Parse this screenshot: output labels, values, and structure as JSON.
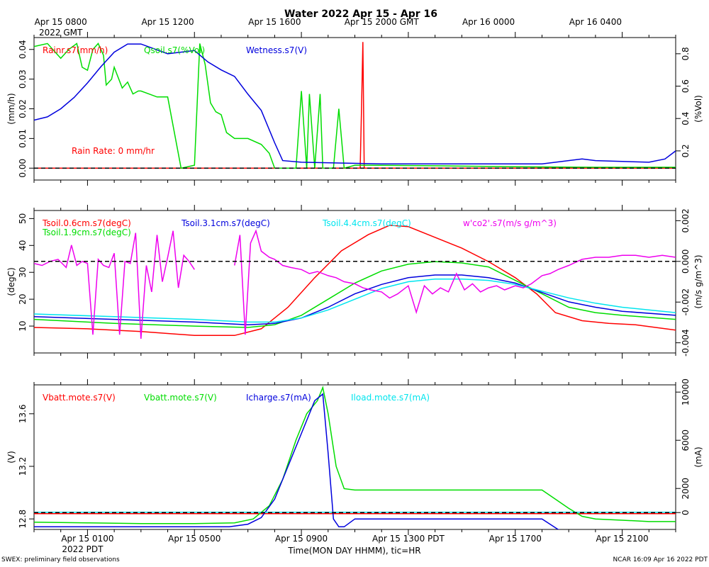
{
  "title": "Water 2022 Apr 15 - Apr 16",
  "gmt_ticks": [
    {
      "x": 0,
      "label": "Apr 15 0800",
      "label2": "2022 GMT"
    },
    {
      "x": 4,
      "label": "Apr 15 1200"
    },
    {
      "x": 8,
      "label": "Apr 15 1600"
    },
    {
      "x": 12,
      "label": "Apr 15 2000 GMT"
    },
    {
      "x": 16,
      "label": "Apr 16 0000"
    },
    {
      "x": 20,
      "label": "Apr 16 0400"
    }
  ],
  "pdt_ticks": [
    {
      "x": 1,
      "label": "Apr 15 0100",
      "label2": "2022 PDT"
    },
    {
      "x": 5,
      "label": "Apr 15 0500"
    },
    {
      "x": 9,
      "label": "Apr 15 0900"
    },
    {
      "x": 13,
      "label": "Apr 15 1300 PDT"
    },
    {
      "x": 17,
      "label": "Apr 15 1700"
    },
    {
      "x": 21,
      "label": "Apr 15 2100"
    }
  ],
  "x_axis_label": "Time(MON DAY HHMM), tic=HR",
  "footer_left": "SWEX: preliminary field observations",
  "footer_right": "NCAR 16:09 Apr 16 2022 PDT",
  "colors": {
    "red": "#ff0000",
    "green": "#00dd00",
    "blue": "#0000dd",
    "cyan": "#00e5ee",
    "magenta": "#ee00ee",
    "black": "#000000"
  },
  "chart_data": [
    {
      "type": "line",
      "title": "Water panel",
      "xlim": [
        -1,
        23
      ],
      "ylabel_left": "(mm/h)",
      "ylim_left": [
        -0.004,
        0.044
      ],
      "yticks_left": [
        0.0,
        0.01,
        0.02,
        0.03,
        0.04
      ],
      "ytick_labels_left": [
        "0.00",
        "0.01",
        "0.02",
        "0.03",
        "0.04"
      ],
      "ylabel_right": "(%Vol)",
      "ylim_right": [
        0.02,
        0.9
      ],
      "yticks_right": [
        0.2,
        0.4,
        0.6,
        0.8
      ],
      "ytick_labels_right": [
        "0.2",
        "0.4",
        "0.6",
        "0.8"
      ],
      "zero_line": 0.0,
      "annotation": "Rain Rate: 0 mm/hr",
      "series": [
        {
          "name": "Rainr.s7(mm/h)",
          "color": "red",
          "axis": "left",
          "x": [
            -1,
            11.2,
            11.25,
            11.3,
            11.35,
            23
          ],
          "y": [
            0,
            0,
            0.02,
            0.0425,
            0,
            0
          ]
        },
        {
          "name": "Qsoil.s7(%Vol)",
          "color": "green",
          "axis": "left",
          "x": [
            -1,
            -0.5,
            0,
            0.3,
            0.6,
            0.8,
            1,
            1.2,
            1.4,
            1.6,
            1.7,
            1.9,
            2,
            2.3,
            2.5,
            2.7,
            2.9,
            3,
            3.3,
            3.6,
            4,
            4.5,
            5,
            5.2,
            5.4,
            5.6,
            5.8,
            6,
            6.2,
            6.5,
            7,
            7.5,
            7.8,
            8,
            8.2,
            8.5,
            8.8,
            9,
            9.2,
            9.3,
            9.5,
            9.7,
            9.8,
            10,
            10.2,
            10.4,
            10.6,
            11,
            11.5,
            14,
            17,
            20,
            23
          ],
          "y": [
            0.041,
            0.042,
            0.037,
            0.04,
            0.042,
            0.034,
            0.033,
            0.04,
            0.042,
            0.038,
            0.028,
            0.03,
            0.034,
            0.027,
            0.029,
            0.025,
            0.026,
            0.026,
            0.025,
            0.024,
            0.024,
            0.0,
            0.001,
            0.042,
            0.035,
            0.022,
            0.019,
            0.018,
            0.012,
            0.01,
            0.01,
            0.008,
            0.005,
            0.0,
            0.0,
            0.0,
            0.0,
            0.026,
            0.0,
            0.025,
            0.0,
            0.025,
            0.0,
            0.0,
            0.0,
            0.02,
            0.0,
            0.001,
            0.001,
            0.0008,
            0.0005,
            0.0003,
            0.0003
          ]
        },
        {
          "name": "Wetness.s7(V)",
          "color": "blue",
          "axis": "right",
          "x": [
            -1,
            -0.5,
            0,
            0.5,
            1,
            1.5,
            2,
            2.5,
            3,
            4,
            5,
            5.5,
            6,
            6.5,
            7,
            7.5,
            8,
            8.3,
            9,
            12,
            15,
            18,
            19.5,
            20,
            22,
            22.6,
            23
          ],
          "y": [
            0.39,
            0.41,
            0.46,
            0.53,
            0.62,
            0.72,
            0.81,
            0.86,
            0.86,
            0.8,
            0.82,
            0.75,
            0.7,
            0.66,
            0.55,
            0.45,
            0.25,
            0.14,
            0.13,
            0.12,
            0.12,
            0.12,
            0.15,
            0.14,
            0.13,
            0.15,
            0.2
          ]
        }
      ]
    },
    {
      "type": "line",
      "title": "Soil temperature panel",
      "xlim": [
        -1,
        23
      ],
      "ylabel_left": "(degC)",
      "ylim_left": [
        0,
        53
      ],
      "yticks_left": [
        10,
        20,
        30,
        40,
        50
      ],
      "ytick_labels_left": [
        "10",
        "20",
        "30",
        "40",
        "50"
      ],
      "ylabel_right": "(m/s g/m^3)",
      "ylim_right": [
        -0.0045,
        0.0025
      ],
      "yticks_right": [
        -0.004,
        -0.002,
        0.0,
        0.002
      ],
      "ytick_labels_right": [
        "-0.004",
        "-0.002",
        "0.000",
        "0.002"
      ],
      "zero_line": 0.0,
      "series": [
        {
          "name": "Tsoil.0.6cm.s7(degC)",
          "color": "red",
          "axis": "left",
          "x": [
            -1,
            1,
            3,
            5,
            6.5,
            7.5,
            8.5,
            9.5,
            10.5,
            11.5,
            12.3,
            13,
            14,
            15,
            16,
            17,
            17.8,
            18.5,
            19.5,
            20.5,
            21.5,
            23
          ],
          "y": [
            9.5,
            9,
            8,
            6.5,
            6.5,
            9,
            17,
            28,
            38,
            44,
            47.5,
            47,
            43,
            39,
            34,
            28,
            22,
            15,
            12,
            11,
            10.5,
            8.5
          ]
        },
        {
          "name": "Tsoil.1.9cm.s7(degC)",
          "color": "green",
          "axis": "left",
          "x": [
            -1,
            2,
            5,
            7,
            8,
            9,
            10,
            11,
            12,
            13,
            14,
            15,
            16,
            17,
            18,
            19,
            20,
            21,
            23
          ],
          "y": [
            12.5,
            11,
            10,
            9.5,
            10.5,
            14,
            20,
            26,
            30.5,
            33,
            34,
            33.5,
            32,
            27,
            22,
            17,
            15,
            14,
            12.5
          ]
        },
        {
          "name": "Tsoil.3.1cm.s7(degC)",
          "color": "blue",
          "axis": "left",
          "x": [
            -1,
            2,
            5,
            7,
            8,
            9,
            10,
            11,
            12,
            13,
            14,
            15,
            16,
            17,
            18,
            19,
            20,
            21,
            23
          ],
          "y": [
            13.5,
            12.5,
            11.5,
            10.5,
            11,
            13,
            17,
            22,
            25.5,
            28,
            29,
            29,
            28,
            26,
            22.5,
            19,
            17,
            15.5,
            14
          ]
        },
        {
          "name": "Tsoil.4.4cm.s7(degC)",
          "color": "cyan",
          "axis": "left",
          "x": [
            -1,
            2,
            5,
            7,
            8,
            9,
            10,
            11,
            12,
            13,
            14,
            15,
            16,
            17,
            18,
            19,
            20,
            21,
            23
          ],
          "y": [
            14.5,
            13.5,
            12.5,
            11.5,
            11.5,
            13,
            16,
            20,
            24,
            26.5,
            27.5,
            27.5,
            27,
            25.5,
            23,
            20.5,
            18.5,
            17,
            15
          ]
        },
        {
          "name": "w'co2'.s7(m/s g/m^3)",
          "color": "magenta",
          "axis": "right",
          "x": [
            -1,
            -0.7,
            -0.4,
            -0.1,
            0.2,
            0.4,
            0.6,
            0.8,
            1,
            1.2,
            1.4,
            1.6,
            1.8,
            2,
            2.2,
            2.4,
            2.6,
            2.8,
            3,
            3.2,
            3.4,
            3.6,
            3.8,
            4,
            4.2,
            4.4,
            4.6,
            4.8,
            5
          ],
          "y": [
            -0.0001,
            -0.0002,
            0.0,
            0.0001,
            -0.0003,
            0.0008,
            -0.0002,
            0.0,
            -0.0001,
            -0.0036,
            0.0001,
            -0.0002,
            -0.0003,
            0.0004,
            -0.0036,
            0.0,
            -0.0001,
            0.0014,
            -0.0038,
            -0.0002,
            -0.0015,
            0.0013,
            -0.001,
            0.0002,
            0.0015,
            -0.0013,
            0.0003,
            0.0,
            -0.0004
          ]
        },
        {
          "name": "w'co2'.s7(m/s g/m^3)",
          "color": "magenta",
          "axis": "right",
          "x": [
            6.5,
            6.7,
            6.9,
            7.1,
            7.3,
            7.5,
            7.8,
            8,
            8.3,
            8.6,
            9,
            9.3,
            9.6,
            10,
            10.3,
            10.6,
            11,
            11.3,
            11.6,
            12,
            12.3,
            12.6,
            13,
            13.3,
            13.6,
            13.9,
            14.2,
            14.5,
            14.8,
            15.1,
            15.4,
            15.7,
            16,
            16.3,
            16.6,
            17,
            17.3,
            17.6,
            18,
            18.3,
            18.6,
            19,
            19.5,
            20,
            20.5,
            21,
            21.5,
            22,
            22.5,
            23
          ],
          "y": [
            -0.0002,
            0.0013,
            -0.0036,
            0.0009,
            0.0015,
            0.0005,
            0.0002,
            0.0001,
            -0.0002,
            -0.0003,
            -0.0004,
            -0.0006,
            -0.0005,
            -0.0007,
            -0.0008,
            -0.001,
            -0.0011,
            -0.0013,
            -0.0014,
            -0.0015,
            -0.0018,
            -0.0016,
            -0.0012,
            -0.0025,
            -0.0012,
            -0.0016,
            -0.0013,
            -0.0015,
            -0.0006,
            -0.0014,
            -0.0011,
            -0.0015,
            -0.0013,
            -0.0012,
            -0.0014,
            -0.0012,
            -0.0013,
            -0.0011,
            -0.0007,
            -0.0006,
            -0.0004,
            -0.0002,
            0.0001,
            0.0002,
            0.0002,
            0.0003,
            0.0003,
            0.0002,
            0.0003,
            0.0002
          ]
        }
      ]
    },
    {
      "type": "line",
      "title": "Battery panel",
      "xlim": [
        -1,
        23
      ],
      "ylabel_left": "(V)",
      "ylim_left": [
        12.72,
        13.82
      ],
      "yticks_left": [
        12.8,
        13.2,
        13.6
      ],
      "ytick_labels_left": [
        "12.8",
        "13.2",
        "13.6"
      ],
      "ylabel_right": "(mA)",
      "ylim_right": [
        -1400,
        10600
      ],
      "yticks_right": [
        0,
        2000,
        6000,
        10000
      ],
      "ytick_labels_right": [
        "0",
        "2000",
        "6000",
        "10000"
      ],
      "zero_line": 0.0,
      "series": [
        {
          "name": "Vbatt.mote.s7(V)",
          "color": "red",
          "axis": "left",
          "x": [
            -1,
            23
          ],
          "y": [
            12.84,
            12.84
          ]
        },
        {
          "name": "Vbatt.mote.s7(V)",
          "color": "green",
          "axis": "left",
          "x": [
            -1,
            1,
            3,
            5,
            6.5,
            7.2,
            7.8,
            8.3,
            8.8,
            9.2,
            9.6,
            9.8,
            10,
            10.3,
            10.6,
            11,
            12,
            14,
            16,
            17,
            18,
            18.5,
            19,
            19.5,
            20,
            21,
            21.5,
            22,
            23
          ],
          "y": [
            12.775,
            12.77,
            12.765,
            12.765,
            12.77,
            12.8,
            12.9,
            13.1,
            13.4,
            13.6,
            13.7,
            13.8,
            13.6,
            13.2,
            13.03,
            13.02,
            13.02,
            13.02,
            13.02,
            13.02,
            13.02,
            12.95,
            12.88,
            12.82,
            12.8,
            12.79,
            12.785,
            12.78,
            12.78
          ]
        },
        {
          "name": "Icharge.s7(mA)",
          "color": "blue",
          "axis": "left",
          "x": [
            -1,
            3,
            6.3,
            7,
            7.5,
            8,
            8.5,
            9,
            9.5,
            9.8,
            10,
            10.2,
            10.4,
            10.6,
            11,
            14,
            18,
            18.6,
            19,
            22,
            23
          ],
          "y": [
            12.74,
            12.74,
            12.74,
            12.76,
            12.81,
            12.95,
            13.2,
            13.45,
            13.7,
            13.75,
            13.3,
            12.8,
            12.74,
            12.74,
            12.8,
            12.8,
            12.8,
            12.72,
            12.7,
            12.7,
            12.7
          ]
        },
        {
          "name": "Iload.mote.s7(mA)",
          "color": "cyan",
          "axis": "right",
          "x": [
            -1,
            23
          ],
          "y": [
            30,
            30
          ]
        }
      ]
    }
  ]
}
